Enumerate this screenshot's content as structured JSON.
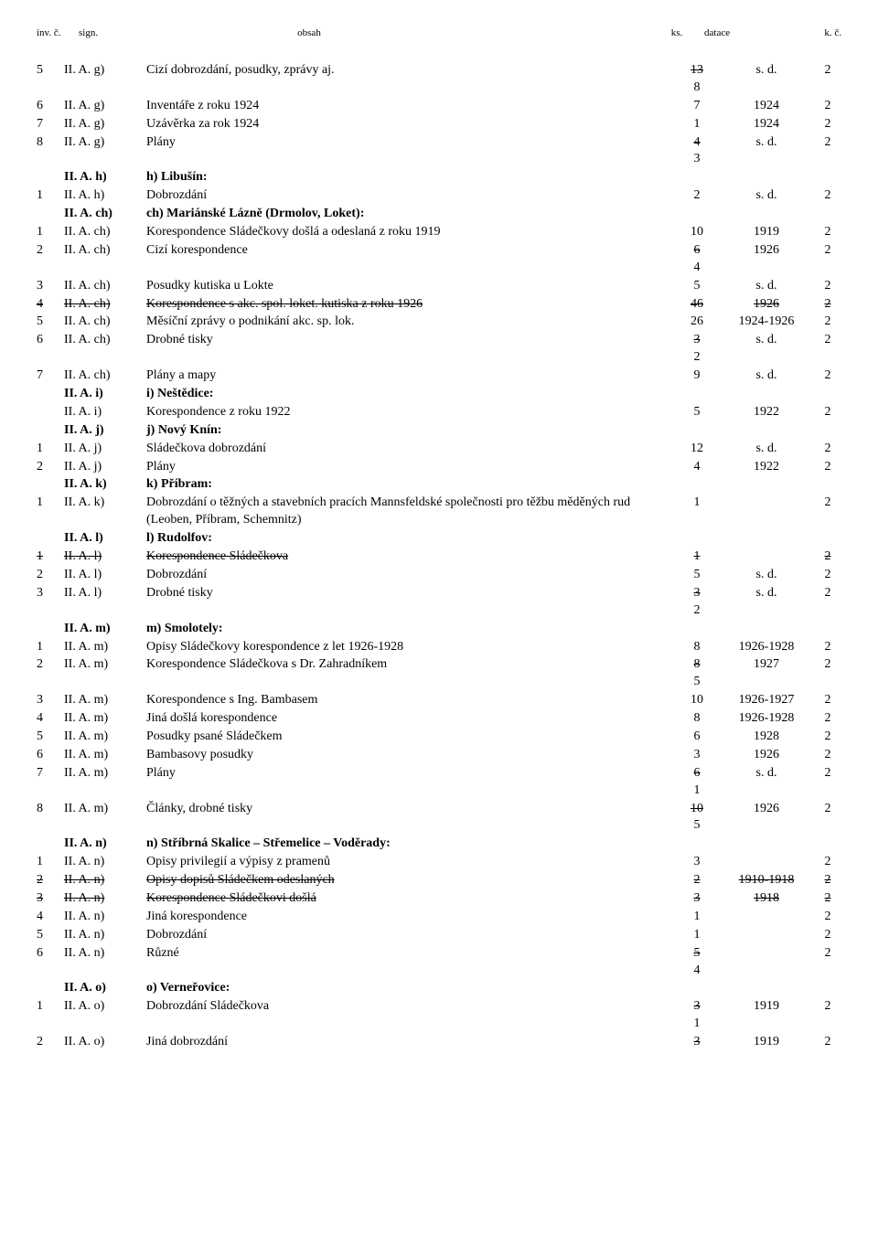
{
  "header": {
    "inv": "inv. č.",
    "sign": "sign.",
    "obsah": "obsah",
    "ks": "ks.",
    "datace": "datace",
    "kc": "k. č."
  },
  "rows": [
    {
      "inv": "5",
      "sign": "II. A. g)",
      "obsah": "Cizí dobrozdání, posudky, zprávy aj.",
      "ks": "13",
      "ks_strike": true,
      "ks2": "8",
      "dat": "s. d.",
      "kc": "2"
    },
    {
      "inv": "6",
      "sign": "II. A. g)",
      "obsah": "Inventáře z roku 1924",
      "ks": "7",
      "dat": "1924",
      "kc": "2"
    },
    {
      "inv": "7",
      "sign": "II. A. g)",
      "obsah": "Uzávěrka za rok 1924",
      "ks": "1",
      "dat": "1924",
      "kc": "2"
    },
    {
      "inv": "8",
      "sign": "II. A. g)",
      "obsah": "Plány",
      "ks": "4",
      "ks_strike": true,
      "ks2": "3",
      "dat": "s. d.",
      "kc": "2"
    },
    {
      "inv": "",
      "sign": "II. A. h)",
      "sign_bold": true,
      "obsah": "h) Libušín:",
      "obsah_bold": true,
      "ks": "",
      "dat": "",
      "kc": ""
    },
    {
      "inv": "1",
      "sign": "II. A. h)",
      "obsah": "Dobrozdání",
      "ks": "2",
      "dat": "s. d.",
      "kc": "2"
    },
    {
      "inv": "",
      "sign": "II. A. ch)",
      "sign_bold": true,
      "obsah": "ch) Mariánské Lázně (Drmolov, Loket):",
      "obsah_bold": true,
      "ks": "",
      "dat": "",
      "kc": ""
    },
    {
      "inv": "1",
      "sign": "II. A. ch)",
      "obsah": "Korespondence Sládečkovy došlá a odeslaná z roku 1919",
      "ks": "10",
      "dat": "1919",
      "kc": "2"
    },
    {
      "inv": "2",
      "sign": "II. A. ch)",
      "obsah": "Cizí korespondence",
      "ks": "6",
      "ks_strike": true,
      "ks2": "4",
      "dat": "1926",
      "kc": "2"
    },
    {
      "inv": "3",
      "sign": "II. A. ch)",
      "obsah": "Posudky kutiska u Lokte",
      "ks": "5",
      "dat": "s. d.",
      "kc": "2"
    },
    {
      "inv": "4",
      "sign": "II. A. ch)",
      "obsah": "Korespondence s akc. spol. loket. kutiska z roku 1926",
      "ks": "46",
      "dat": "1926",
      "kc": "2",
      "row_strike": true
    },
    {
      "inv": "5",
      "sign": "II. A. ch)",
      "obsah": "Měsíční zprávy o podnikání akc. sp. lok.",
      "ks": "26",
      "dat": "1924-1926",
      "kc": "2"
    },
    {
      "inv": "6",
      "sign": "II. A. ch)",
      "obsah": "Drobné tisky",
      "ks": "3",
      "ks_strike": true,
      "ks2": "2",
      "dat": "s. d.",
      "kc": "2"
    },
    {
      "inv": "7",
      "sign": "II. A. ch)",
      "obsah": "Plány a mapy",
      "ks": "9",
      "dat": "s. d.",
      "kc": "2"
    },
    {
      "inv": "",
      "sign": "II. A. i)",
      "sign_bold": true,
      "obsah": "i) Neštědice:",
      "obsah_bold": true,
      "ks": "",
      "dat": "",
      "kc": ""
    },
    {
      "inv": "",
      "sign": "II. A. i)",
      "obsah": "Korespondence z roku 1922",
      "ks": "5",
      "dat": "1922",
      "kc": "2"
    },
    {
      "inv": "",
      "sign": "II. A. j)",
      "sign_bold": true,
      "obsah": "j) Nový Knín:",
      "obsah_bold": true,
      "ks": "",
      "dat": "",
      "kc": ""
    },
    {
      "inv": "1",
      "sign": "II. A. j)",
      "obsah": "Sládečkova dobrozdání",
      "ks": "12",
      "dat": "s. d.",
      "kc": "2"
    },
    {
      "inv": "2",
      "sign": "II. A. j)",
      "obsah": "Plány",
      "ks": "4",
      "dat": "1922",
      "kc": "2"
    },
    {
      "inv": "",
      "sign": "II. A. k)",
      "sign_bold": true,
      "obsah": "k) Příbram:",
      "obsah_bold": true,
      "ks": "",
      "dat": "",
      "kc": ""
    },
    {
      "inv": "1",
      "sign": "II. A. k)",
      "obsah": "Dobrozdání o těžných a stavebních pracích Mannsfeldské společnosti pro těžbu měděných rud (Leoben, Příbram, Schemnitz)",
      "ks": "1",
      "dat": "",
      "kc": "2"
    },
    {
      "inv": "",
      "sign": "II. A. l)",
      "sign_bold": true,
      "obsah": "l) Rudolfov:",
      "obsah_bold": true,
      "ks": "",
      "dat": "",
      "kc": ""
    },
    {
      "inv": "1",
      "sign": "II. A. l)",
      "obsah": "Korespondence Sládečkova",
      "ks": "1",
      "dat": "",
      "kc": "2",
      "row_strike": true
    },
    {
      "inv": "2",
      "sign": "II. A. l)",
      "obsah": "Dobrozdání",
      "ks": "5",
      "dat": "s. d.",
      "kc": "2"
    },
    {
      "inv": "3",
      "sign": "II. A. l)",
      "obsah": "Drobné tisky",
      "ks": "3",
      "ks_strike": true,
      "ks2": "2",
      "dat": "s. d.",
      "kc": "2"
    },
    {
      "inv": "",
      "sign": "II. A. m)",
      "sign_bold": true,
      "obsah": "m) Smolotely:",
      "obsah_bold": true,
      "ks": "",
      "dat": "",
      "kc": ""
    },
    {
      "inv": "1",
      "sign": "II. A. m)",
      "obsah": "Opisy Sládečkovy korespondence z let 1926-1928",
      "ks": "8",
      "dat": "1926-1928",
      "kc": "2"
    },
    {
      "inv": "2",
      "sign": "II. A. m)",
      "obsah": "Korespondence Sládečkova s Dr. Zahradníkem",
      "ks": "8",
      "ks_strike": true,
      "ks2": "5",
      "dat": "1927",
      "kc": "2"
    },
    {
      "inv": "3",
      "sign": "II. A. m)",
      "obsah": "Korespondence s Ing. Bambasem",
      "ks": "10",
      "dat": "1926-1927",
      "kc": "2"
    },
    {
      "inv": "4",
      "sign": "II. A. m)",
      "obsah": "Jiná došlá korespondence",
      "ks": "8",
      "dat": "1926-1928",
      "kc": "2"
    },
    {
      "inv": "5",
      "sign": "II. A. m)",
      "obsah": "Posudky psané Sládečkem",
      "ks": "6",
      "dat": "1928",
      "kc": "2"
    },
    {
      "inv": "6",
      "sign": "II. A. m)",
      "obsah": "Bambasovy posudky",
      "ks": "3",
      "dat": "1926",
      "kc": "2"
    },
    {
      "inv": "7",
      "sign": "II. A. m)",
      "obsah": "Plány",
      "ks": "6",
      "ks_strike": true,
      "ks2": "1",
      "dat": "s. d.",
      "kc": "2"
    },
    {
      "inv": "8",
      "sign": "II. A. m)",
      "obsah": "Články, drobné tisky",
      "ks": "10",
      "ks_strike": true,
      "ks2": "5",
      "dat": "1926",
      "kc": "2"
    },
    {
      "inv": "",
      "sign": "II. A. n)",
      "sign_bold": true,
      "obsah": "n) Stříbrná Skalice – Střemelice – Voděrady:",
      "obsah_bold": true,
      "ks": "",
      "dat": "",
      "kc": ""
    },
    {
      "inv": "1",
      "sign": "II. A. n)",
      "obsah": "Opisy privilegií a výpisy z pramenů",
      "ks": "3",
      "dat": "",
      "kc": "2"
    },
    {
      "inv": "2",
      "sign": "II. A. n)",
      "obsah": "Opisy dopisů Sládečkem odeslaných",
      "ks": "2",
      "dat": "1910-1918",
      "kc": "2",
      "row_strike": true
    },
    {
      "inv": "3",
      "sign": "II. A. n)",
      "obsah": "Korespondence Sládečkovi došlá",
      "ks": "3",
      "dat": "1918",
      "kc": "2",
      "row_strike": true
    },
    {
      "inv": "4",
      "sign": "II. A. n)",
      "obsah": "Jiná korespondence",
      "ks": "1",
      "dat": "",
      "kc": "2"
    },
    {
      "inv": "5",
      "sign": "II. A. n)",
      "obsah": "Dobrozdání",
      "ks": "1",
      "dat": "",
      "kc": "2"
    },
    {
      "inv": "6",
      "sign": "II. A. n)",
      "obsah": "Různé",
      "ks": "5",
      "ks_strike": true,
      "ks2": "4",
      "dat": "",
      "kc": "2"
    },
    {
      "inv": "",
      "sign": "II. A. o)",
      "sign_bold": true,
      "obsah": "o) Verneřovice:",
      "obsah_bold": true,
      "ks": "",
      "dat": "",
      "kc": ""
    },
    {
      "inv": "1",
      "sign": "II. A. o)",
      "obsah": "Dobrozdání Sládečkova",
      "ks": "3",
      "ks_strike": true,
      "ks2": "1",
      "dat": "1919",
      "kc": "2"
    },
    {
      "inv": "2",
      "sign": "II. A. o)",
      "obsah": "Jiná dobrozdání",
      "ks": "3",
      "ks_strike": true,
      "dat": "1919",
      "kc": "2"
    }
  ]
}
